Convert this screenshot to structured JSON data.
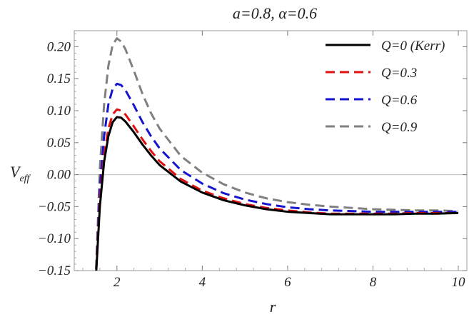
{
  "chart_data": {
    "type": "line",
    "title": "a=0.8, α=0.6",
    "xlabel": "r",
    "ylabel_main": "V",
    "ylabel_sub": "eff",
    "xlim": [
      1.0,
      10.2
    ],
    "ylim": [
      -0.15,
      0.225
    ],
    "xticks": [
      2,
      4,
      6,
      8,
      10
    ],
    "yticks": [
      -0.15,
      -0.1,
      -0.05,
      0.0,
      0.05,
      0.1,
      0.15,
      0.2
    ],
    "ytick_labels": [
      "−0.15",
      "−0.10",
      "−0.05",
      "0.00",
      "0.05",
      "0.10",
      "0.15",
      "0.20"
    ],
    "xtick_labels": [
      "2",
      "4",
      "6",
      "8",
      "10"
    ],
    "zero_line": true,
    "legend_position": "top-right",
    "x": [
      1.5,
      1.6,
      1.7,
      1.8,
      1.9,
      2.0,
      2.1,
      2.2,
      2.4,
      2.6,
      2.8,
      3.0,
      3.5,
      4.0,
      4.5,
      5.0,
      5.5,
      6.0,
      6.5,
      7.0,
      7.5,
      8.0,
      8.5,
      9.0,
      9.5,
      10.0
    ],
    "series": [
      {
        "name": "Q=0 (Kerr)",
        "color": "#000000",
        "dash": "solid",
        "values": [
          -0.17,
          -0.05,
          0.02,
          0.06,
          0.082,
          0.09,
          0.089,
          0.083,
          0.066,
          0.047,
          0.03,
          0.015,
          -0.011,
          -0.028,
          -0.04,
          -0.048,
          -0.054,
          -0.058,
          -0.06,
          -0.062,
          -0.062,
          -0.062,
          -0.062,
          -0.061,
          -0.061,
          -0.06
        ]
      },
      {
        "name": "Q=0.3",
        "color": "#e01010",
        "dash": "dashed",
        "values": [
          -0.17,
          -0.04,
          0.03,
          0.072,
          0.094,
          0.102,
          0.1,
          0.094,
          0.075,
          0.055,
          0.037,
          0.021,
          -0.007,
          -0.025,
          -0.037,
          -0.046,
          -0.052,
          -0.056,
          -0.059,
          -0.061,
          -0.061,
          -0.061,
          -0.061,
          -0.06,
          -0.06,
          -0.06
        ]
      },
      {
        "name": "Q=0.6",
        "color": "#1515d0",
        "dash": "dashed",
        "values": [
          -0.17,
          -0.02,
          0.06,
          0.11,
          0.134,
          0.142,
          0.14,
          0.132,
          0.108,
          0.082,
          0.06,
          0.041,
          0.007,
          -0.014,
          -0.029,
          -0.039,
          -0.046,
          -0.051,
          -0.054,
          -0.056,
          -0.057,
          -0.058,
          -0.058,
          -0.058,
          -0.058,
          -0.058
        ]
      },
      {
        "name": "Q=0.9",
        "color": "#808080",
        "dash": "dashed",
        "values": [
          -0.17,
          0.01,
          0.11,
          0.17,
          0.203,
          0.213,
          0.208,
          0.196,
          0.162,
          0.126,
          0.096,
          0.072,
          0.029,
          0.003,
          -0.015,
          -0.028,
          -0.037,
          -0.043,
          -0.047,
          -0.05,
          -0.052,
          -0.054,
          -0.055,
          -0.056,
          -0.056,
          -0.057
        ]
      }
    ]
  }
}
